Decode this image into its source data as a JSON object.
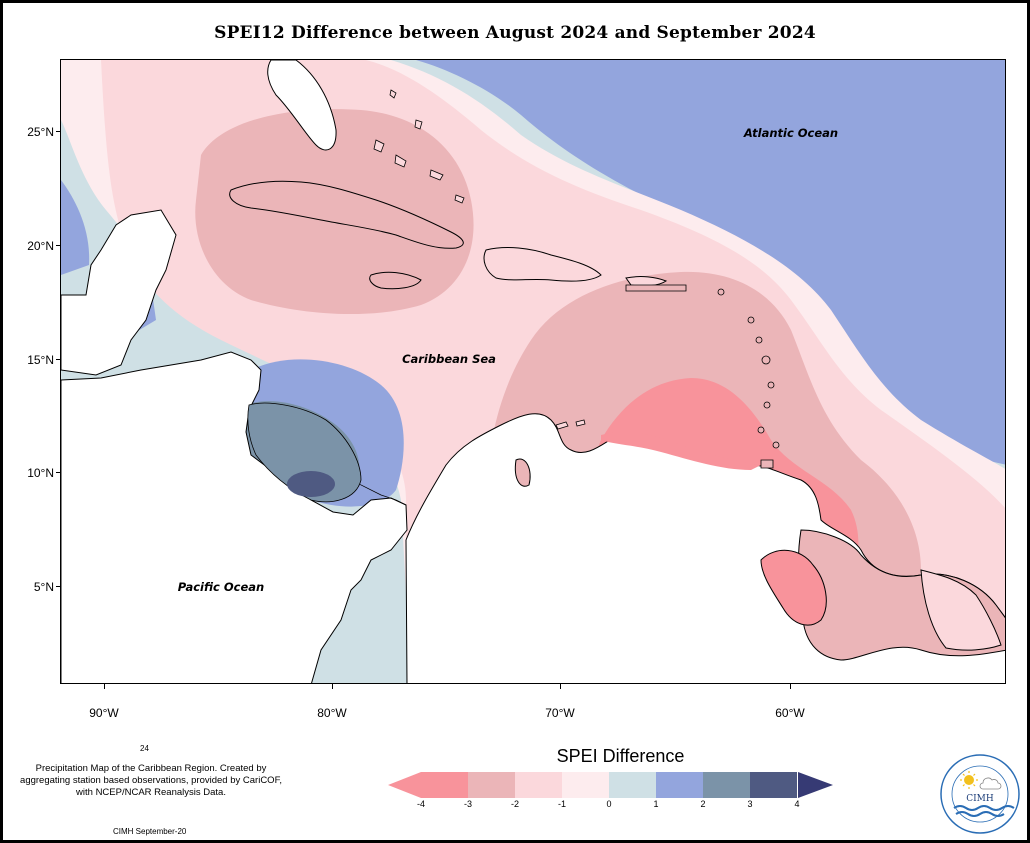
{
  "title": "SPEI12 Difference between August 2024 and September 2024",
  "map": {
    "lat_labels": [
      "25°N",
      "20°N",
      "15°N",
      "10°N",
      "5°N"
    ],
    "lon_labels": [
      "90°W",
      "80°W",
      "70°W",
      "60°W"
    ],
    "place_labels": {
      "atlantic": "Atlantic Ocean",
      "caribbean": "Caribbean Sea",
      "pacific": "Pacific Ocean"
    }
  },
  "legend": {
    "title": "SPEI Difference",
    "ticks": [
      "-4",
      "-3",
      "-2",
      "-1",
      "0",
      "1",
      "2",
      "3",
      "4"
    ],
    "colors": [
      "#f8939b",
      "#ebb5b8",
      "#fbd8dc",
      "#fdecee",
      "#cfe0e5",
      "#93a5dd",
      "#7b93a8",
      "#4f5a82",
      "#363a74"
    ]
  },
  "notes": {
    "number": "24",
    "description": "Precipitation Map of the Caribbean Region. Created by aggregating station based observations, provided by CariCOF, with NCEP/NCAR Reanalysis Data.",
    "footer": "CIMH September-20"
  },
  "logo": {
    "text": "CIMH",
    "ring_text": "Caribbean Institute for Meteorology and Hydrology"
  }
}
